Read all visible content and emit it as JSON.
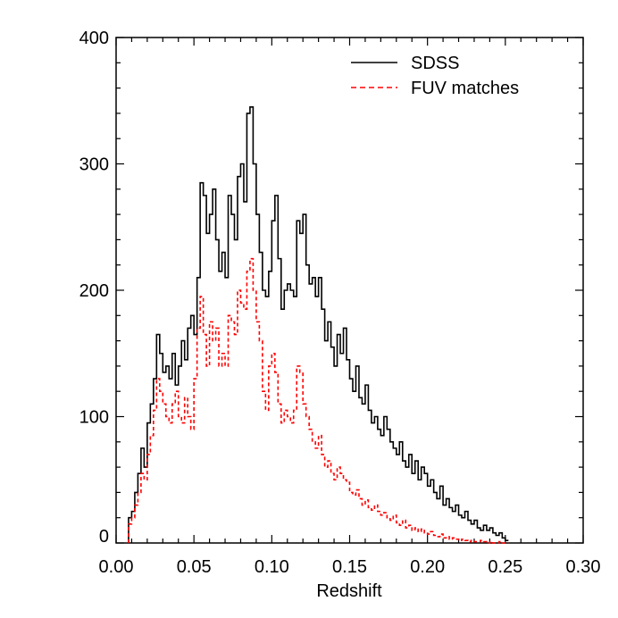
{
  "chart_data": {
    "type": "line",
    "title": "",
    "xlabel": "Redshift",
    "ylabel": "",
    "xlim": [
      0.0,
      0.3
    ],
    "ylim": [
      0,
      400
    ],
    "x_ticks": [
      "0.00",
      "0.05",
      "0.10",
      "0.15",
      "0.20",
      "0.25",
      "0.30"
    ],
    "y_ticks": [
      "0",
      "100",
      "200",
      "300",
      "400"
    ],
    "grid": false,
    "legend_position": "top-right",
    "series": [
      {
        "name": "SDSS",
        "style": "solid",
        "color": "#000000",
        "x": [
          0.009,
          0.011,
          0.013,
          0.015,
          0.017,
          0.019,
          0.021,
          0.023,
          0.025,
          0.027,
          0.029,
          0.031,
          0.033,
          0.035,
          0.037,
          0.039,
          0.041,
          0.043,
          0.045,
          0.047,
          0.049,
          0.051,
          0.053,
          0.055,
          0.057,
          0.059,
          0.061,
          0.063,
          0.065,
          0.067,
          0.069,
          0.071,
          0.073,
          0.075,
          0.077,
          0.079,
          0.081,
          0.083,
          0.085,
          0.087,
          0.089,
          0.091,
          0.093,
          0.095,
          0.097,
          0.099,
          0.101,
          0.103,
          0.105,
          0.107,
          0.109,
          0.111,
          0.113,
          0.115,
          0.117,
          0.119,
          0.121,
          0.123,
          0.125,
          0.127,
          0.129,
          0.131,
          0.133,
          0.135,
          0.137,
          0.139,
          0.141,
          0.143,
          0.145,
          0.147,
          0.149,
          0.151,
          0.153,
          0.155,
          0.157,
          0.159,
          0.161,
          0.163,
          0.165,
          0.167,
          0.169,
          0.171,
          0.173,
          0.175,
          0.177,
          0.179,
          0.181,
          0.183,
          0.185,
          0.187,
          0.189,
          0.191,
          0.193,
          0.195,
          0.197,
          0.199,
          0.201,
          0.203,
          0.205,
          0.207,
          0.209,
          0.211,
          0.213,
          0.215,
          0.217,
          0.219,
          0.221,
          0.223,
          0.225,
          0.227,
          0.229,
          0.231,
          0.233,
          0.235,
          0.237,
          0.239,
          0.241,
          0.243,
          0.245,
          0.247,
          0.249,
          0.251
        ],
        "values": [
          20,
          25,
          40,
          55,
          75,
          60,
          95,
          110,
          130,
          165,
          150,
          135,
          140,
          130,
          150,
          125,
          140,
          160,
          145,
          170,
          180,
          165,
          210,
          285,
          275,
          245,
          260,
          280,
          240,
          215,
          230,
          210,
          275,
          260,
          240,
          290,
          300,
          270,
          340,
          345,
          300,
          260,
          230,
          200,
          195,
          215,
          255,
          275,
          225,
          185,
          200,
          205,
          200,
          195,
          255,
          245,
          260,
          220,
          205,
          210,
          195,
          210,
          185,
          160,
          175,
          155,
          140,
          165,
          150,
          170,
          145,
          130,
          120,
          140,
          115,
          110,
          125,
          105,
          95,
          100,
          90,
          85,
          100,
          90,
          80,
          75,
          70,
          80,
          65,
          60,
          70,
          55,
          65,
          50,
          60,
          55,
          45,
          50,
          40,
          35,
          45,
          30,
          35,
          28,
          25,
          30,
          22,
          20,
          25,
          18,
          15,
          18,
          12,
          10,
          14,
          10,
          12,
          8,
          6,
          8,
          4,
          2
        ]
      },
      {
        "name": "FUV matches",
        "style": "dashed",
        "color": "#ff0000",
        "x": [
          0.009,
          0.011,
          0.013,
          0.015,
          0.017,
          0.019,
          0.021,
          0.023,
          0.025,
          0.027,
          0.029,
          0.031,
          0.033,
          0.035,
          0.037,
          0.039,
          0.041,
          0.043,
          0.045,
          0.047,
          0.049,
          0.051,
          0.053,
          0.055,
          0.057,
          0.059,
          0.061,
          0.063,
          0.065,
          0.067,
          0.069,
          0.071,
          0.073,
          0.075,
          0.077,
          0.079,
          0.081,
          0.083,
          0.085,
          0.087,
          0.089,
          0.091,
          0.093,
          0.095,
          0.097,
          0.099,
          0.101,
          0.103,
          0.105,
          0.107,
          0.109,
          0.111,
          0.113,
          0.115,
          0.117,
          0.119,
          0.121,
          0.123,
          0.125,
          0.127,
          0.129,
          0.131,
          0.133,
          0.135,
          0.137,
          0.139,
          0.141,
          0.143,
          0.145,
          0.147,
          0.149,
          0.151,
          0.153,
          0.155,
          0.157,
          0.159,
          0.161,
          0.163,
          0.165,
          0.167,
          0.169,
          0.171,
          0.173,
          0.175,
          0.177,
          0.179,
          0.181,
          0.183,
          0.185,
          0.187,
          0.189,
          0.191,
          0.193,
          0.195,
          0.197,
          0.199,
          0.201,
          0.203,
          0.205,
          0.207,
          0.209,
          0.211,
          0.213,
          0.215,
          0.217,
          0.219,
          0.221,
          0.223,
          0.225,
          0.227,
          0.229,
          0.231,
          0.233,
          0.235,
          0.237,
          0.239,
          0.241,
          0.243,
          0.245,
          0.247,
          0.249,
          0.251
        ],
        "values": [
          15,
          20,
          30,
          40,
          55,
          50,
          70,
          85,
          105,
          130,
          120,
          110,
          100,
          95,
          110,
          120,
          100,
          95,
          115,
          100,
          90,
          130,
          170,
          195,
          165,
          140,
          175,
          160,
          170,
          140,
          150,
          140,
          180,
          175,
          165,
          200,
          190,
          185,
          215,
          225,
          200,
          175,
          160,
          120,
          105,
          140,
          150,
          135,
          110,
          95,
          105,
          100,
          95,
          105,
          140,
          135,
          110,
          100,
          90,
          80,
          75,
          85,
          70,
          60,
          65,
          55,
          50,
          60,
          55,
          50,
          48,
          40,
          38,
          42,
          35,
          30,
          34,
          28,
          26,
          30,
          25,
          22,
          24,
          20,
          18,
          22,
          16,
          14,
          18,
          12,
          14,
          10,
          12,
          9,
          11,
          8,
          7,
          9,
          6,
          5,
          7,
          4,
          5,
          3,
          4,
          3,
          2,
          3,
          2,
          1,
          2,
          1,
          1,
          2,
          1,
          0,
          1,
          0,
          0,
          1,
          0,
          0
        ]
      }
    ]
  }
}
